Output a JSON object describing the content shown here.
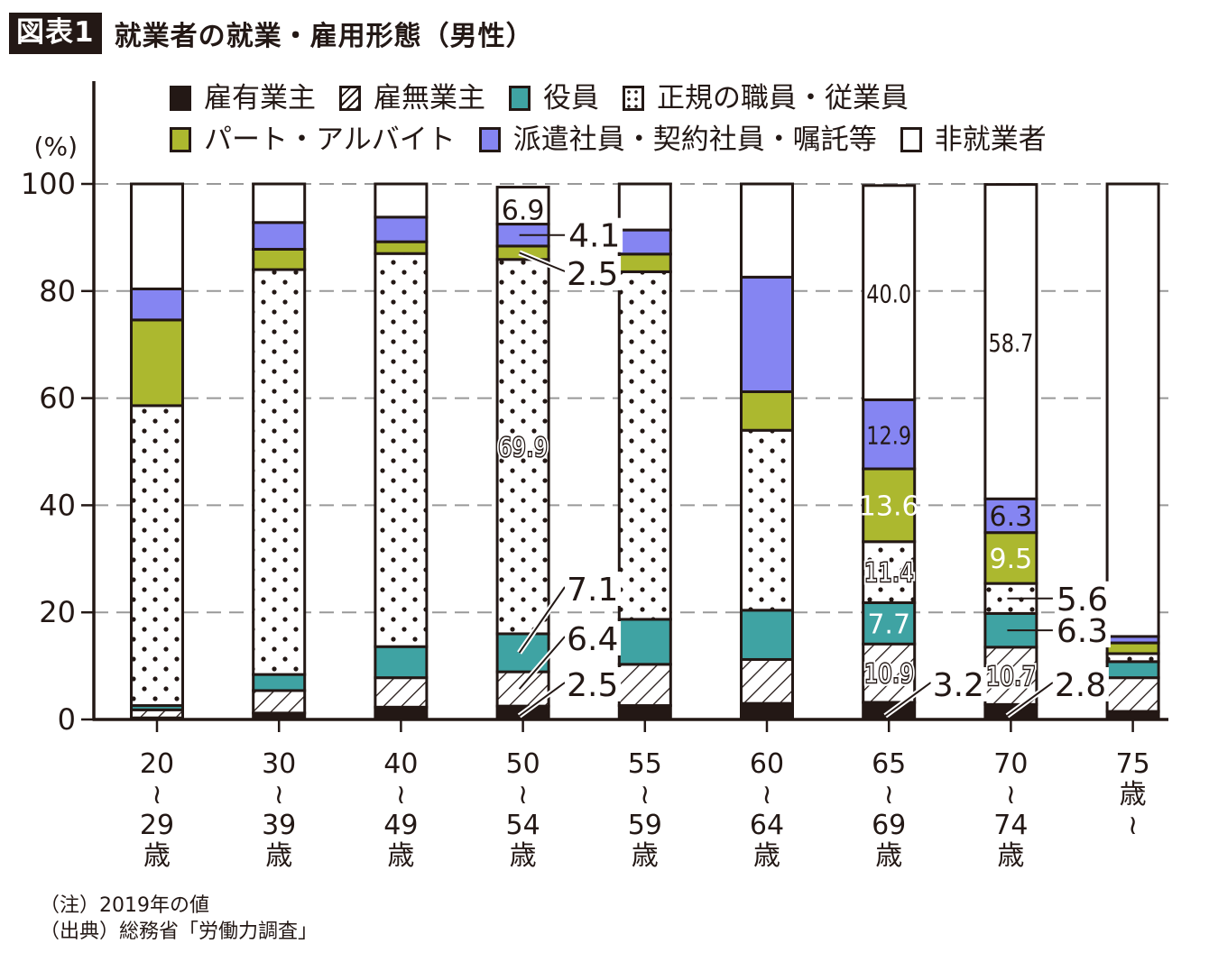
{
  "header": {
    "badge": "図表1",
    "title": "就業者の就業・雇用形態（男性）"
  },
  "notes": [
    "（注）2019年の値",
    "（出典）総務省「労働力調査」"
  ],
  "colors": {
    "owner_with_employees": "#231815",
    "owner_without_employees": "#ffffff",
    "executive": "#3fa3a3",
    "regular": "#ffffff",
    "part_time": "#acb82f",
    "dispatch": "#8585f2",
    "not_employed": "#ffffff",
    "grid": "#999999",
    "ink": "#231815"
  },
  "chart_data": {
    "type": "bar",
    "stacked": true,
    "title": "就業者の就業・雇用形態（男性）",
    "ylabel": "(%)",
    "xlabel": "",
    "ylim": [
      0,
      100
    ],
    "yticks": [
      0,
      20,
      40,
      60,
      80,
      100
    ],
    "grid": true,
    "legend_position": "top",
    "categories": [
      {
        "top": "20",
        "tilde": "〜",
        "bottom": "29",
        "unit": "歳"
      },
      {
        "top": "30",
        "tilde": "〜",
        "bottom": "39",
        "unit": "歳"
      },
      {
        "top": "40",
        "tilde": "〜",
        "bottom": "49",
        "unit": "歳"
      },
      {
        "top": "50",
        "tilde": "〜",
        "bottom": "54",
        "unit": "歳"
      },
      {
        "top": "55",
        "tilde": "〜",
        "bottom": "59",
        "unit": "歳"
      },
      {
        "top": "60",
        "tilde": "〜",
        "bottom": "64",
        "unit": "歳"
      },
      {
        "top": "65",
        "tilde": "〜",
        "bottom": "69",
        "unit": "歳"
      },
      {
        "top": "70",
        "tilde": "〜",
        "bottom": "74",
        "unit": "歳"
      },
      {
        "top": "75",
        "unit": "歳",
        "tilde": "〜",
        "bottom": ""
      }
    ],
    "series": [
      {
        "key": "owner_with_employees",
        "name": "雇有業主",
        "pattern": "solid-dark",
        "values": [
          0.3,
          1.2,
          2.3,
          2.5,
          2.6,
          3.0,
          3.2,
          2.8,
          1.5
        ]
      },
      {
        "key": "owner_without_employees",
        "name": "雇無業主",
        "pattern": "hatch",
        "values": [
          1.5,
          4.2,
          5.5,
          6.4,
          7.7,
          8.2,
          10.9,
          10.7,
          6.3
        ]
      },
      {
        "key": "executive",
        "name": "役員",
        "pattern": "solid",
        "values": [
          0.8,
          3.0,
          5.8,
          7.1,
          8.4,
          9.2,
          7.7,
          6.3,
          3.0
        ]
      },
      {
        "key": "regular",
        "name": "正規の職員・従業員",
        "pattern": "dots",
        "values": [
          56.0,
          75.6,
          73.4,
          69.9,
          64.9,
          33.6,
          11.4,
          5.6,
          1.5
        ]
      },
      {
        "key": "part_time",
        "name": "パート・アルバイト",
        "pattern": "solid",
        "values": [
          16.0,
          3.8,
          2.2,
          2.5,
          3.3,
          7.2,
          13.6,
          9.5,
          2.0
        ]
      },
      {
        "key": "dispatch",
        "name": "派遣社員・契約社員・嘱託等",
        "pattern": "solid",
        "values": [
          5.8,
          5.0,
          4.6,
          4.1,
          4.5,
          21.4,
          12.9,
          6.3,
          1.2
        ]
      },
      {
        "key": "not_employed",
        "name": "非就業者",
        "pattern": "solid",
        "values": [
          19.6,
          7.2,
          6.2,
          6.9,
          8.6,
          17.4,
          40.0,
          58.7,
          84.5
        ]
      }
    ],
    "data_labels": [
      {
        "category": 3,
        "series": "not_employed",
        "text": "6.9",
        "style": "inside"
      },
      {
        "category": 3,
        "series": "dispatch",
        "text": "4.1",
        "style": "leader",
        "row": 0
      },
      {
        "category": 3,
        "series": "part_time",
        "text": "2.5",
        "style": "leader-diag",
        "row": 1
      },
      {
        "category": 3,
        "series": "regular",
        "text": "69.9",
        "style": "inside-outline"
      },
      {
        "category": 3,
        "series": "executive",
        "text": "7.1",
        "style": "leader-diag",
        "row": 2
      },
      {
        "category": 3,
        "series": "owner_without_employees",
        "text": "6.4",
        "style": "leader-diag",
        "row": 3
      },
      {
        "category": 3,
        "series": "owner_with_employees",
        "text": "2.5",
        "style": "leader-diag",
        "row": 4
      },
      {
        "category": 6,
        "series": "not_employed",
        "text": "40.0",
        "style": "inside-narrow"
      },
      {
        "category": 6,
        "series": "dispatch",
        "text": "12.9",
        "style": "inside-narrow"
      },
      {
        "category": 6,
        "series": "part_time",
        "text": "13.6",
        "style": "inside-white"
      },
      {
        "category": 6,
        "series": "regular",
        "text": "11.4",
        "style": "inside-outline"
      },
      {
        "category": 6,
        "series": "executive",
        "text": "7.7",
        "style": "inside-white"
      },
      {
        "category": 6,
        "series": "owner_without_employees",
        "text": "10.9",
        "style": "inside-outline"
      },
      {
        "category": 6,
        "series": "owner_with_employees",
        "text": "3.2",
        "style": "leader-diag",
        "row": 5
      },
      {
        "category": 7,
        "series": "not_employed",
        "text": "58.7",
        "style": "inside-narrow"
      },
      {
        "category": 7,
        "series": "dispatch",
        "text": "6.3",
        "style": "inside"
      },
      {
        "category": 7,
        "series": "part_time",
        "text": "9.5",
        "style": "inside-white"
      },
      {
        "category": 7,
        "series": "regular",
        "text": "5.6",
        "style": "leader",
        "row": 6
      },
      {
        "category": 7,
        "series": "executive",
        "text": "6.3",
        "style": "leader",
        "row": 7
      },
      {
        "category": 7,
        "series": "owner_without_employees",
        "text": "10.7",
        "style": "inside-outline"
      },
      {
        "category": 7,
        "series": "owner_with_employees",
        "text": "2.8",
        "style": "leader-diag",
        "row": 8
      }
    ]
  }
}
